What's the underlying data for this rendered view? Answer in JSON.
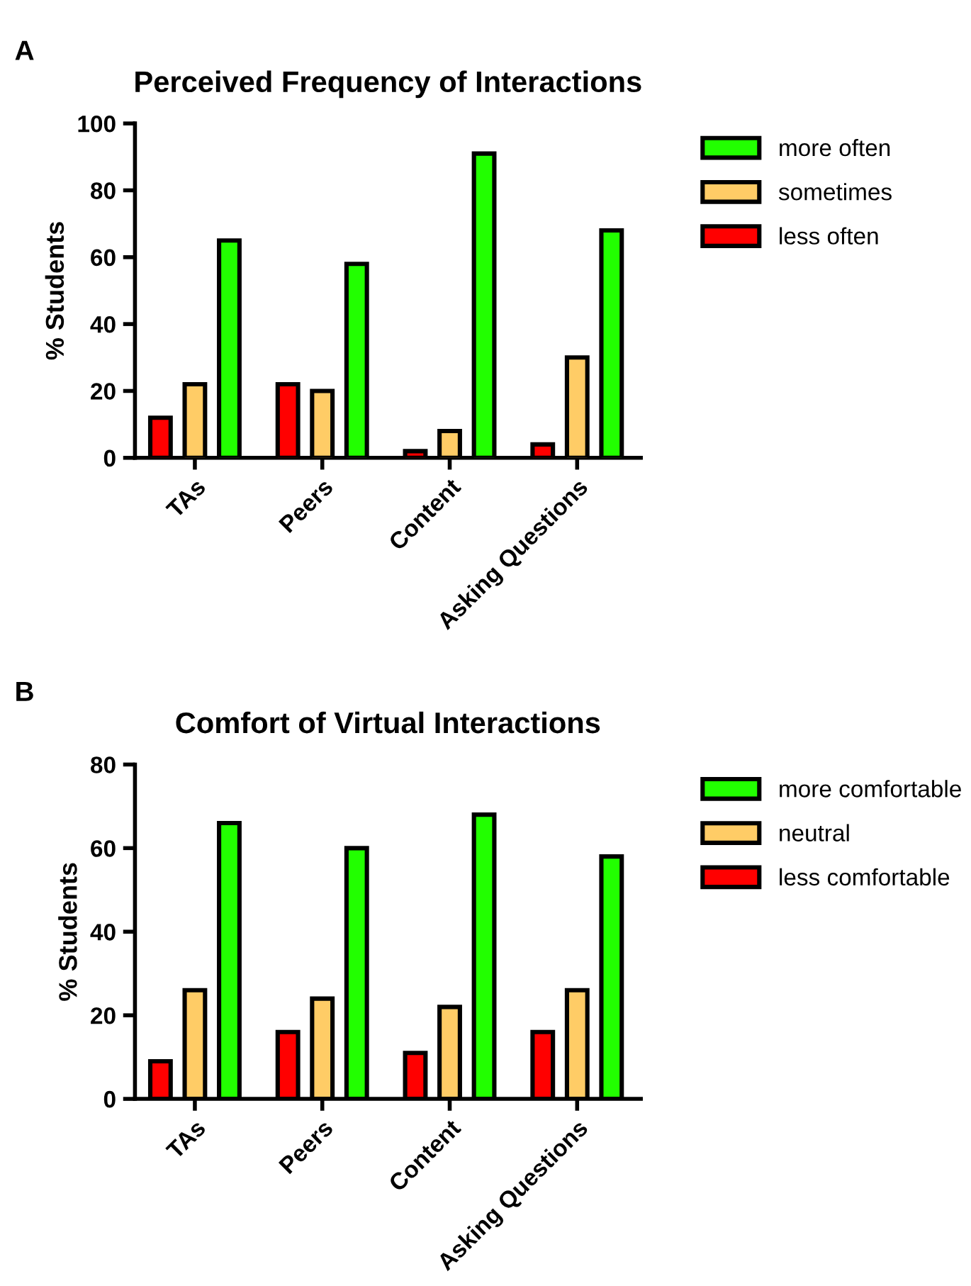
{
  "chart_data": [
    {
      "type": "bar",
      "title": "Perceived Frequency of Interactions",
      "ylabel": "% Students",
      "annotations": [
        "A"
      ],
      "categories": [
        "TAs",
        "Peers",
        "Content",
        "Asking Questions"
      ],
      "series": [
        {
          "name": "less often",
          "color": "#ff0000",
          "values": [
            12,
            22,
            2,
            4
          ]
        },
        {
          "name": "sometimes",
          "color": "#ffcc66",
          "values": [
            22,
            20,
            8,
            30
          ]
        },
        {
          "name": "more often",
          "color": "#22ff00",
          "values": [
            65,
            58,
            91,
            68
          ]
        }
      ],
      "ylim": [
        0,
        100
      ],
      "yticks": [
        0,
        20,
        40,
        60,
        80,
        100
      ],
      "grid": false,
      "legend": "right"
    },
    {
      "type": "bar",
      "title": "Comfort of Virtual Interactions",
      "ylabel": "% Students",
      "annotations": [
        "B"
      ],
      "categories": [
        "TAs",
        "Peers",
        "Content",
        "Asking Questions"
      ],
      "series": [
        {
          "name": "less comfortable",
          "color": "#ff0000",
          "values": [
            9,
            16,
            11,
            16
          ]
        },
        {
          "name": "neutral",
          "color": "#ffcc66",
          "values": [
            26,
            24,
            22,
            26
          ]
        },
        {
          "name": "more comfortable",
          "color": "#22ff00",
          "values": [
            66,
            60,
            68,
            58
          ]
        }
      ],
      "ylim": [
        0,
        80
      ],
      "yticks": [
        0,
        20,
        40,
        60,
        80
      ],
      "grid": false,
      "legend": "right"
    }
  ]
}
